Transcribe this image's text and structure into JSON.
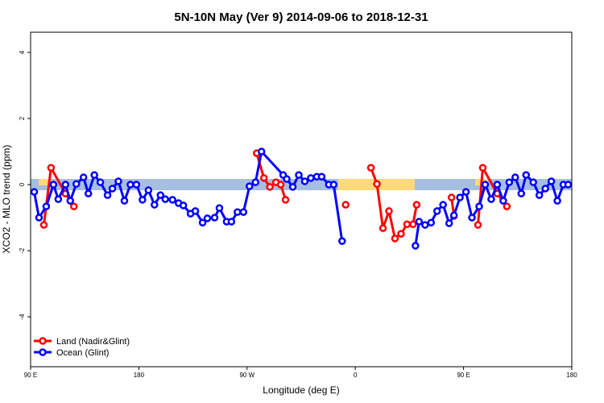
{
  "chart_data": {
    "type": "line",
    "title": "5N-10N May (Ver 9)   2014-09-06 to 2018-12-31",
    "xlabel": "Longitude (deg E)",
    "ylabel": "XCO2 - MLO trend (ppm)",
    "xlim": [
      90,
      540
    ],
    "ylim": [
      -5.51,
      4.61
    ],
    "xticks": [
      {
        "value": 90,
        "label": "90 E"
      },
      180,
      {
        "value": 270,
        "label": "90 W"
      },
      {
        "value": 360,
        "label": "0"
      },
      {
        "value": 450,
        "label": "90 E"
      },
      {
        "value": 540,
        "label": "180"
      }
    ],
    "yticks": [
      -4,
      -2,
      0,
      2,
      4
    ],
    "legend": "bottom-left",
    "series": [
      {
        "name": "Land (Nadir&Glint)",
        "color": "#ff0000",
        "x": [
          101,
          107,
          119,
          126,
          null,
          278,
          284,
          289,
          294,
          298,
          302,
          null,
          352,
          null,
          373,
          378,
          383,
          388,
          393,
          398,
          403,
          408,
          411,
          null,
          440,
          442,
          null,
          462,
          466,
          478,
          486
        ],
        "values": [
          -1.22,
          0.51,
          -0.27,
          -0.66,
          null,
          0.95,
          0.2,
          -0.07,
          0.07,
          0.0,
          -0.46,
          null,
          -0.61,
          null,
          0.51,
          0.02,
          -1.32,
          -0.8,
          -1.63,
          -1.49,
          -1.2,
          -1.2,
          -0.61,
          null,
          -0.39,
          -0.95,
          null,
          -1.22,
          0.51,
          -0.27,
          -0.66
        ]
      },
      {
        "name": "Ocean (Glint)",
        "color": "#0000ff",
        "x": [
          93,
          97,
          103,
          109,
          113,
          119,
          123,
          128,
          134,
          138,
          143,
          148,
          154,
          158,
          163,
          168,
          173,
          178,
          183,
          188,
          193,
          198,
          202,
          208,
          213,
          217,
          223,
          227,
          233,
          237,
          243,
          247,
          253,
          257,
          262,
          267,
          272,
          277,
          282,
          300,
          303,
          308,
          313,
          318,
          323,
          328,
          332,
          338,
          342,
          349,
          null,
          410,
          413,
          418,
          423,
          428,
          433,
          438,
          442,
          447,
          452,
          457,
          463,
          468,
          473,
          478,
          483,
          488,
          493,
          498,
          502,
          508,
          513,
          518,
          523,
          528,
          533,
          537
        ],
        "values": [
          -0.22,
          -1.0,
          -0.66,
          0,
          -0.44,
          0,
          -0.49,
          0.02,
          0.22,
          -0.27,
          0.29,
          0.07,
          -0.32,
          -0.12,
          0.1,
          -0.49,
          0,
          0,
          -0.46,
          -0.17,
          -0.61,
          -0.32,
          -0.44,
          -0.46,
          -0.56,
          -0.63,
          -0.88,
          -0.8,
          -1.15,
          -1.02,
          -1.0,
          -0.71,
          -1.12,
          -1.12,
          -0.83,
          -0.83,
          -0.05,
          0.07,
          1.0,
          0.29,
          0.17,
          -0.07,
          0.29,
          0.1,
          0.2,
          0.24,
          0.24,
          0,
          0,
          -1.71,
          null,
          -1.85,
          -1.12,
          -1.22,
          -1.15,
          -0.8,
          -0.61,
          -1.17,
          -0.93,
          -0.39,
          -0.22,
          -1.0,
          -0.66,
          0,
          -0.44,
          0,
          -0.49,
          0.07,
          0.22,
          -0.27,
          0.29,
          0.07,
          -0.32,
          -0.12,
          0.1,
          -0.49,
          0,
          0
        ]
      }
    ]
  }
}
